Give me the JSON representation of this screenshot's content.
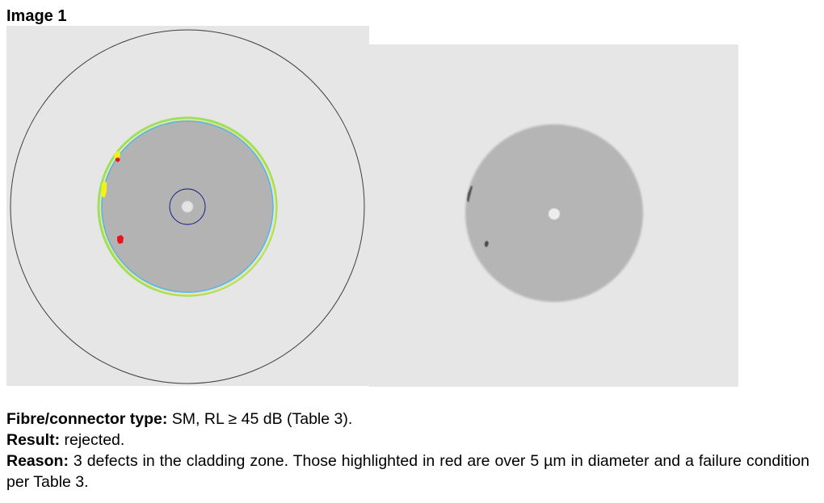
{
  "figure": {
    "title": "Image 1"
  },
  "description": {
    "fibre_label": "Fibre/connector type:",
    "fibre_value": " SM, RL ≥ 45 dB (Table 3).",
    "result_label": "Result:",
    "result_value": " rejected.",
    "reason_label": "Reason:",
    "reason_value": " 3 defects in the cladding zone. Those highlighted in red are over 5 µm in diameter and a failure condition per Table 3."
  },
  "colors": {
    "panel_background": "#e6e6e6",
    "cladding_gray": "#b3b3b3",
    "defect_red": "#e8141b",
    "defect_yellow": "#f2f21a",
    "contact_zone_circle": "#3e3e3e",
    "core_zone_circle": "#1e1e8c",
    "cladding_boundary_cyan": "#4db8e6",
    "cladding_boundary_green": "#9fe05a"
  }
}
